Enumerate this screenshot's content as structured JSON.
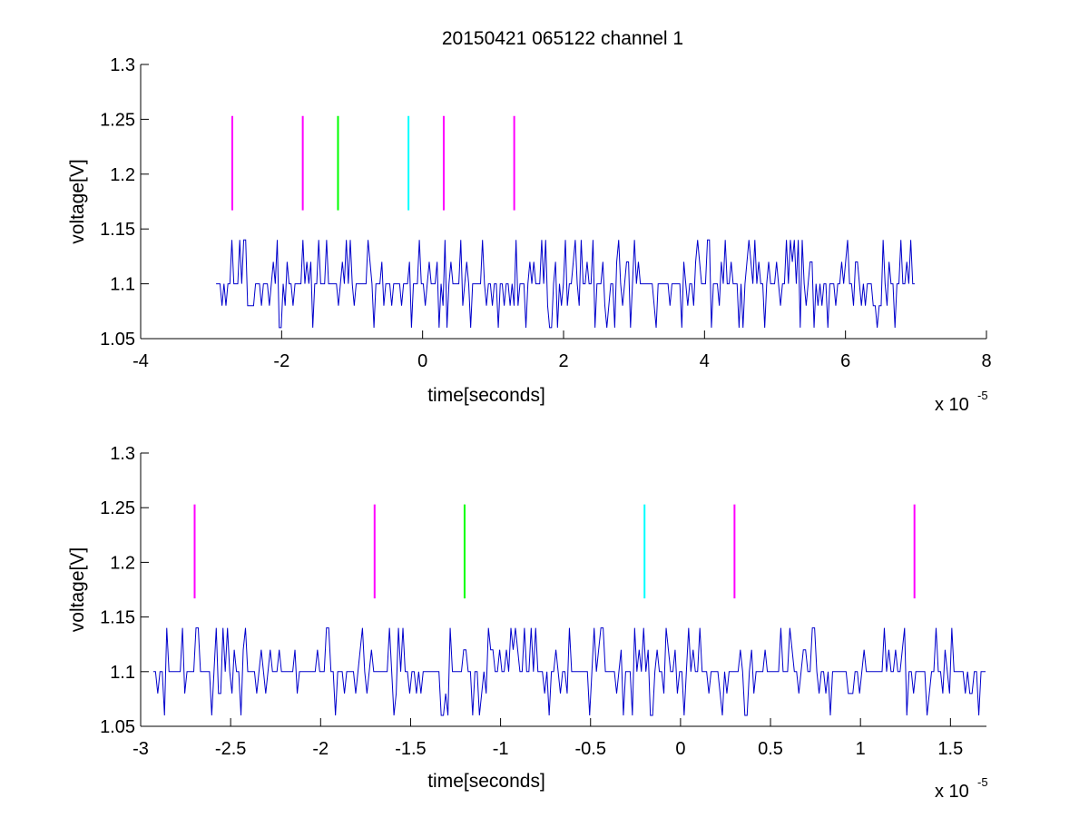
{
  "figure": {
    "title": "20150421 065122 channel 1"
  },
  "chart_data": [
    {
      "type": "line",
      "title": "20150421 065122 channel 1",
      "xlabel": "time[seconds]",
      "ylabel": "voltage[V]",
      "x_multiplier": "x 10",
      "x_exponent": "-5",
      "xlim": [
        -4,
        8
      ],
      "ylim": [
        1.05,
        1.3
      ],
      "xticks": [
        -4,
        -2,
        0,
        2,
        4,
        6,
        8
      ],
      "xtick_labels": [
        "-4",
        "-2",
        "0",
        "2",
        "4",
        "6",
        "8"
      ],
      "yticks": [
        1.05,
        1.1,
        1.15,
        1.2,
        1.25,
        1.3
      ],
      "ytick_labels": [
        "1.05",
        "1.1",
        "1.15",
        "1.2",
        "1.25",
        "1.3"
      ],
      "grid": false,
      "series": [
        {
          "color": "#0000cc",
          "x_range": [
            -2.93,
            7.0
          ],
          "baseline": 1.1,
          "levels": [
            1.06,
            1.08,
            1.1,
            1.12,
            1.14
          ],
          "description_values": "noisy square signal alternating between 1.06 and 1.14"
        }
      ],
      "markers": [
        {
          "x": -2.7,
          "y_range": [
            1.167,
            1.253
          ],
          "color": "#ff00ff"
        },
        {
          "x": -1.7,
          "y_range": [
            1.167,
            1.253
          ],
          "color": "#ff00ff"
        },
        {
          "x": -1.2,
          "y_range": [
            1.167,
            1.253
          ],
          "color": "#00ff00"
        },
        {
          "x": -0.2,
          "y_range": [
            1.167,
            1.253
          ],
          "color": "#00ffff"
        },
        {
          "x": 0.3,
          "y_range": [
            1.167,
            1.253
          ],
          "color": "#ff00ff"
        },
        {
          "x": 1.3,
          "y_range": [
            1.167,
            1.253
          ],
          "color": "#ff00ff"
        }
      ]
    },
    {
      "type": "line",
      "title": "",
      "xlabel": "time[seconds]",
      "ylabel": "voltage[V]",
      "x_multiplier": "x 10",
      "x_exponent": "-5",
      "xlim": [
        -3.0,
        1.7
      ],
      "ylim": [
        1.05,
        1.3
      ],
      "xticks": [
        -3,
        -2.5,
        -2,
        -1.5,
        -1,
        -0.5,
        0,
        0.5,
        1,
        1.5
      ],
      "xtick_labels": [
        "-3",
        "-2.5",
        "-2",
        "-1.5",
        "-1",
        "-0.5",
        "0",
        "0.5",
        "1",
        "1.5"
      ],
      "yticks": [
        1.05,
        1.1,
        1.15,
        1.2,
        1.25,
        1.3
      ],
      "ytick_labels": [
        "1.05",
        "1.1",
        "1.15",
        "1.2",
        "1.25",
        "1.3"
      ],
      "grid": false,
      "series": [
        {
          "color": "#0000cc",
          "x_range": [
            -2.93,
            1.7
          ],
          "baseline": 1.1,
          "levels": [
            1.06,
            1.08,
            1.1,
            1.12,
            1.14
          ]
        }
      ],
      "markers": [
        {
          "x": -2.7,
          "y_range": [
            1.167,
            1.253
          ],
          "color": "#ff00ff"
        },
        {
          "x": -1.7,
          "y_range": [
            1.167,
            1.253
          ],
          "color": "#ff00ff"
        },
        {
          "x": -1.2,
          "y_range": [
            1.167,
            1.253
          ],
          "color": "#00ff00"
        },
        {
          "x": -0.2,
          "y_range": [
            1.167,
            1.253
          ],
          "color": "#00ffff"
        },
        {
          "x": 0.3,
          "y_range": [
            1.167,
            1.253
          ],
          "color": "#ff00ff"
        },
        {
          "x": 1.3,
          "y_range": [
            1.167,
            1.253
          ],
          "color": "#ff00ff"
        }
      ]
    }
  ]
}
